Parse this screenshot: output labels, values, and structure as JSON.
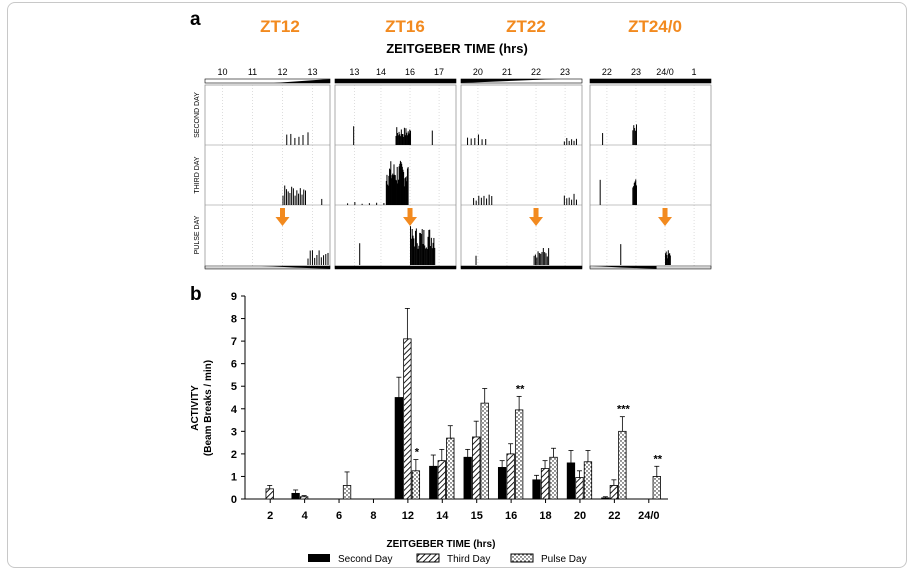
{
  "panel_a": {
    "letter": "a",
    "zt_headers": [
      "ZT12",
      "ZT16",
      "ZT22",
      "ZT24/0"
    ],
    "title": "ZEITGEBER TIME (hrs)",
    "row_labels": [
      "SECOND DAY",
      "THIRD DAY",
      "PULSE DAY"
    ],
    "panels": [
      {
        "ticks": [
          "10",
          "11",
          "12",
          "13"
        ]
      },
      {
        "ticks": [
          "13",
          "14",
          "16",
          "17"
        ]
      },
      {
        "ticks": [
          "20",
          "21",
          "22",
          "23"
        ]
      },
      {
        "ticks": [
          "22",
          "23",
          "24/0",
          "1"
        ]
      }
    ]
  },
  "panel_b": {
    "letter": "b",
    "xlabel": "ZEITGEBER TIME (hrs)",
    "ylabel_line1": "ACTIVITY",
    "ylabel_line2": "(Beam Breaks / min)",
    "legend": [
      "Second Day",
      "Third Day",
      "Pulse Day"
    ]
  },
  "chart_data": [
    {
      "type": "bar",
      "title": "ZEITGEBER TIME (hrs)",
      "panels": [
        "ZT12",
        "ZT16",
        "ZT22",
        "ZT24/0"
      ],
      "rows": [
        "SECOND DAY",
        "THIRD DAY",
        "PULSE DAY"
      ],
      "note": "actogram panels; arrows mark pulse time on pulse day"
    },
    {
      "type": "bar",
      "xlabel": "ZEITGEBER TIME (hrs)",
      "ylabel": "ACTIVITY (Beam Breaks / min)",
      "ylim": [
        0,
        9
      ],
      "yticks": [
        0,
        1,
        2,
        3,
        4,
        5,
        6,
        7,
        8,
        9
      ],
      "categories": [
        "2",
        "4",
        "6",
        "8",
        "12",
        "14",
        "15",
        "16",
        "18",
        "20",
        "22",
        "24/0"
      ],
      "series": [
        {
          "name": "Second Day",
          "values": [
            0,
            0.25,
            0,
            0,
            4.5,
            1.45,
            1.85,
            1.4,
            0.85,
            1.6,
            0.05,
            0
          ],
          "errors": [
            0,
            0.15,
            0,
            0,
            0.9,
            0.5,
            0.35,
            0.3,
            0.2,
            0.55,
            0.05,
            0
          ]
        },
        {
          "name": "Third Day",
          "values": [
            0.45,
            0.1,
            0,
            0,
            7.1,
            1.7,
            2.75,
            2.0,
            1.35,
            0.95,
            0.6,
            0
          ],
          "errors": [
            0.15,
            0.05,
            0,
            0,
            1.35,
            0.5,
            0.7,
            0.45,
            0.35,
            0.3,
            0.25,
            0
          ]
        },
        {
          "name": "Pulse Day",
          "values": [
            0,
            0,
            0.6,
            0,
            1.25,
            2.7,
            4.25,
            3.95,
            1.85,
            1.65,
            3.0,
            1.0
          ],
          "errors": [
            0,
            0,
            0.6,
            0,
            0.5,
            0.55,
            0.65,
            0.6,
            0.4,
            0.5,
            0.65,
            0.45
          ]
        }
      ],
      "annotations": [
        {
          "category": "12",
          "series": "Pulse Day",
          "text": "*"
        },
        {
          "category": "16",
          "series": "Pulse Day",
          "text": "**"
        },
        {
          "category": "22",
          "series": "Pulse Day",
          "text": "***"
        },
        {
          "category": "24/0",
          "series": "Pulse Day",
          "text": "**"
        }
      ],
      "legend": "bottom",
      "grid": false
    }
  ]
}
